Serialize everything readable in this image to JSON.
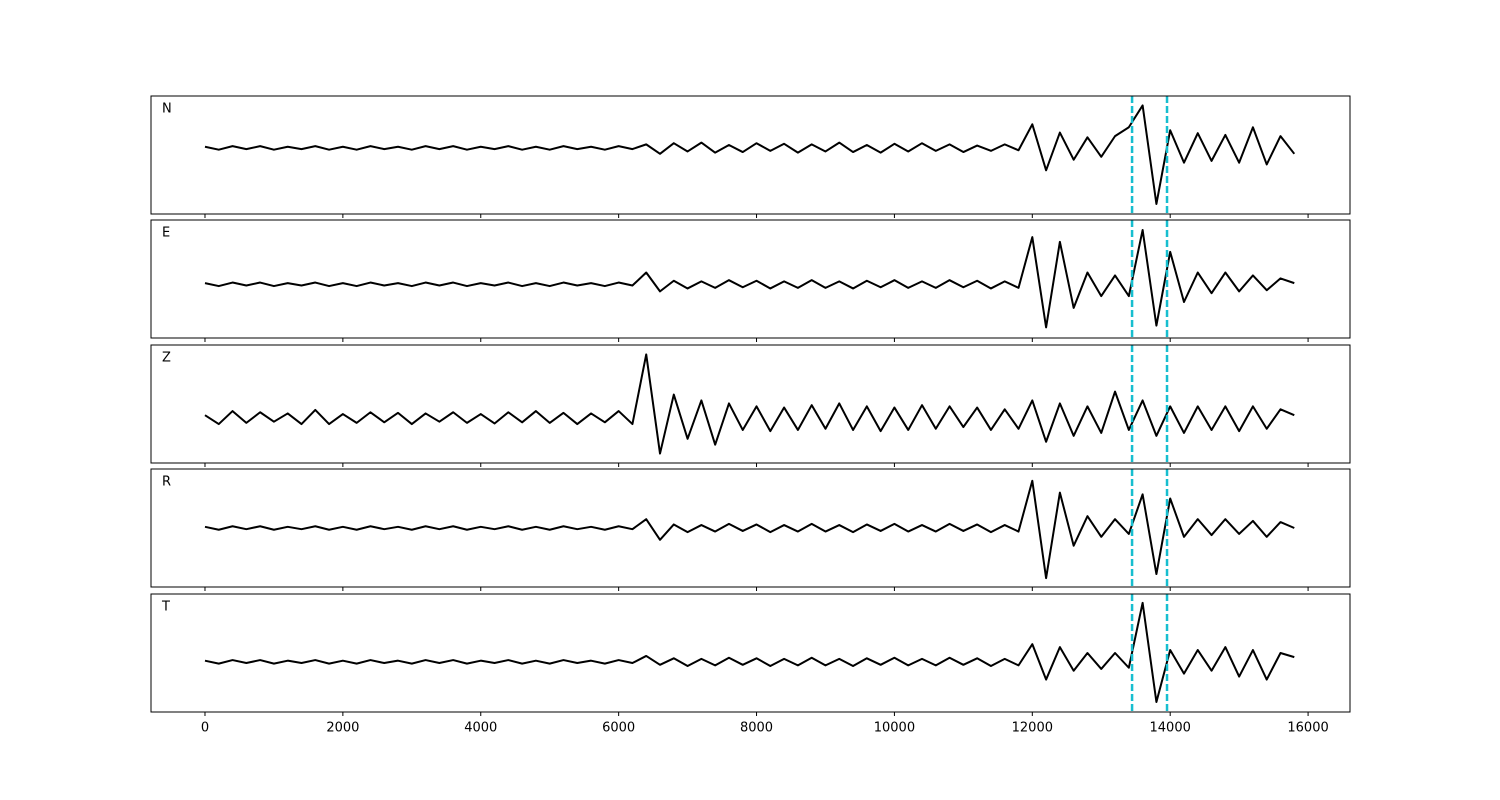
{
  "chart_data": {
    "type": "line",
    "x": [
      0,
      200,
      400,
      600,
      800,
      1000,
      1200,
      1400,
      1600,
      1800,
      2000,
      2200,
      2400,
      2600,
      2800,
      3000,
      3200,
      3400,
      3600,
      3800,
      4000,
      4200,
      4400,
      4600,
      4800,
      5000,
      5200,
      5400,
      5600,
      5800,
      6000,
      6200,
      6400,
      6600,
      6800,
      7000,
      7200,
      7400,
      7600,
      7800,
      8000,
      8200,
      8400,
      8600,
      8800,
      9000,
      9200,
      9400,
      9600,
      9800,
      10000,
      10200,
      10400,
      10600,
      10800,
      11000,
      11200,
      11400,
      11600,
      11800,
      12000,
      12200,
      12400,
      12600,
      12800,
      13000,
      13200,
      13400,
      13600,
      13800,
      14000,
      14200,
      14400,
      14600,
      14800,
      15000,
      15200,
      15400,
      15600,
      15800
    ],
    "xlim": [
      -783,
      16608
    ],
    "xticks": [
      0,
      2000,
      4000,
      6000,
      8000,
      10000,
      12000,
      14000,
      16000
    ],
    "vlines": {
      "values": [
        13447,
        13954
      ],
      "color": "#17becf"
    },
    "series": [
      {
        "name": "N",
        "color": "#000000",
        "ylim": [
          -1.12,
          0.88
        ],
        "values": [
          0.02,
          -0.03,
          0.03,
          -0.02,
          0.03,
          -0.03,
          0.02,
          -0.02,
          0.03,
          -0.03,
          0.02,
          -0.03,
          0.03,
          -0.02,
          0.02,
          -0.03,
          0.03,
          -0.02,
          0.03,
          -0.03,
          0.02,
          -0.02,
          0.03,
          -0.03,
          0.02,
          -0.03,
          0.03,
          -0.02,
          0.02,
          -0.03,
          0.03,
          -0.02,
          0.06,
          -0.1,
          0.08,
          -0.06,
          0.09,
          -0.08,
          0.05,
          -0.07,
          0.08,
          -0.05,
          0.07,
          -0.08,
          0.06,
          -0.06,
          0.09,
          -0.07,
          0.05,
          -0.08,
          0.07,
          -0.06,
          0.08,
          -0.05,
          0.06,
          -0.07,
          0.04,
          -0.05,
          0.06,
          -0.04,
          0.4,
          -0.38,
          0.26,
          -0.2,
          0.18,
          -0.15,
          0.2,
          0.35,
          0.72,
          -0.95,
          0.3,
          -0.25,
          0.25,
          -0.22,
          0.22,
          -0.25,
          0.35,
          -0.28,
          0.2,
          -0.1
        ]
      },
      {
        "name": "E",
        "color": "#000000",
        "ylim": [
          -0.91,
          1.09
        ],
        "values": [
          0.02,
          -0.03,
          0.03,
          -0.02,
          0.03,
          -0.03,
          0.02,
          -0.02,
          0.03,
          -0.03,
          0.02,
          -0.03,
          0.03,
          -0.02,
          0.02,
          -0.03,
          0.03,
          -0.02,
          0.03,
          -0.03,
          0.02,
          -0.02,
          0.03,
          -0.03,
          0.02,
          -0.03,
          0.03,
          -0.02,
          0.02,
          -0.03,
          0.03,
          -0.02,
          0.2,
          -0.12,
          0.06,
          -0.07,
          0.05,
          -0.06,
          0.07,
          -0.05,
          0.06,
          -0.07,
          0.05,
          -0.06,
          0.07,
          -0.06,
          0.05,
          -0.07,
          0.06,
          -0.05,
          0.07,
          -0.06,
          0.05,
          -0.06,
          0.07,
          -0.05,
          0.06,
          -0.07,
          0.05,
          -0.06,
          0.8,
          -0.73,
          0.72,
          -0.4,
          0.2,
          -0.2,
          0.15,
          -0.2,
          0.92,
          -0.7,
          0.55,
          -0.3,
          0.2,
          -0.15,
          0.2,
          -0.12,
          0.15,
          -0.1,
          0.1,
          0.02
        ]
      },
      {
        "name": "Z",
        "color": "#000000",
        "ylim": [
          -0.76,
          1.24
        ],
        "values": [
          0.05,
          -0.1,
          0.12,
          -0.08,
          0.1,
          -0.06,
          0.08,
          -0.1,
          0.14,
          -0.1,
          0.07,
          -0.08,
          0.1,
          -0.07,
          0.09,
          -0.1,
          0.08,
          -0.06,
          0.1,
          -0.08,
          0.07,
          -0.09,
          0.1,
          -0.07,
          0.12,
          -0.08,
          0.09,
          -0.1,
          0.08,
          -0.07,
          0.12,
          -0.1,
          1.08,
          -0.6,
          0.4,
          -0.35,
          0.3,
          -0.45,
          0.25,
          -0.2,
          0.2,
          -0.22,
          0.18,
          -0.2,
          0.22,
          -0.18,
          0.25,
          -0.2,
          0.2,
          -0.22,
          0.18,
          -0.2,
          0.22,
          -0.18,
          0.2,
          -0.15,
          0.18,
          -0.2,
          0.15,
          -0.18,
          0.3,
          -0.4,
          0.25,
          -0.3,
          0.2,
          -0.25,
          0.45,
          -0.2,
          0.3,
          -0.3,
          0.2,
          -0.25,
          0.2,
          -0.2,
          0.2,
          -0.22,
          0.2,
          -0.18,
          0.15,
          0.05
        ]
      },
      {
        "name": "R",
        "color": "#000000",
        "ylim": [
          -1,
          1
        ],
        "values": [
          0.02,
          -0.03,
          0.03,
          -0.02,
          0.03,
          -0.03,
          0.02,
          -0.02,
          0.03,
          -0.03,
          0.02,
          -0.03,
          0.03,
          -0.02,
          0.02,
          -0.03,
          0.03,
          -0.02,
          0.03,
          -0.03,
          0.02,
          -0.02,
          0.03,
          -0.03,
          0.02,
          -0.03,
          0.03,
          -0.02,
          0.02,
          -0.03,
          0.03,
          -0.02,
          0.15,
          -0.2,
          0.06,
          -0.07,
          0.05,
          -0.06,
          0.07,
          -0.05,
          0.06,
          -0.07,
          0.05,
          -0.06,
          0.07,
          -0.06,
          0.05,
          -0.07,
          0.06,
          -0.05,
          0.07,
          -0.06,
          0.05,
          -0.06,
          0.07,
          -0.05,
          0.06,
          -0.07,
          0.05,
          -0.06,
          0.8,
          -0.85,
          0.6,
          -0.3,
          0.2,
          -0.15,
          0.15,
          -0.1,
          0.57,
          -0.78,
          0.5,
          -0.15,
          0.15,
          -0.12,
          0.15,
          -0.1,
          0.12,
          -0.15,
          0.1,
          0
        ]
      },
      {
        "name": "T",
        "color": "#000000",
        "ylim": [
          -0.85,
          1.15
        ],
        "values": [
          0.02,
          -0.03,
          0.03,
          -0.02,
          0.03,
          -0.03,
          0.02,
          -0.02,
          0.03,
          -0.03,
          0.02,
          -0.03,
          0.03,
          -0.02,
          0.02,
          -0.03,
          0.03,
          -0.02,
          0.03,
          -0.03,
          0.02,
          -0.02,
          0.03,
          -0.03,
          0.02,
          -0.03,
          0.03,
          -0.02,
          0.02,
          -0.03,
          0.03,
          -0.02,
          0.1,
          -0.05,
          0.06,
          -0.07,
          0.05,
          -0.06,
          0.07,
          -0.05,
          0.06,
          -0.07,
          0.05,
          -0.06,
          0.07,
          -0.06,
          0.05,
          -0.07,
          0.06,
          -0.05,
          0.07,
          -0.06,
          0.05,
          -0.06,
          0.07,
          -0.05,
          0.06,
          -0.07,
          0.05,
          -0.06,
          0.3,
          -0.3,
          0.25,
          -0.15,
          0.15,
          -0.12,
          0.15,
          -0.1,
          1.0,
          -0.68,
          0.2,
          -0.2,
          0.2,
          -0.15,
          0.25,
          -0.25,
          0.2,
          -0.3,
          0.15,
          0.08
        ]
      }
    ]
  }
}
